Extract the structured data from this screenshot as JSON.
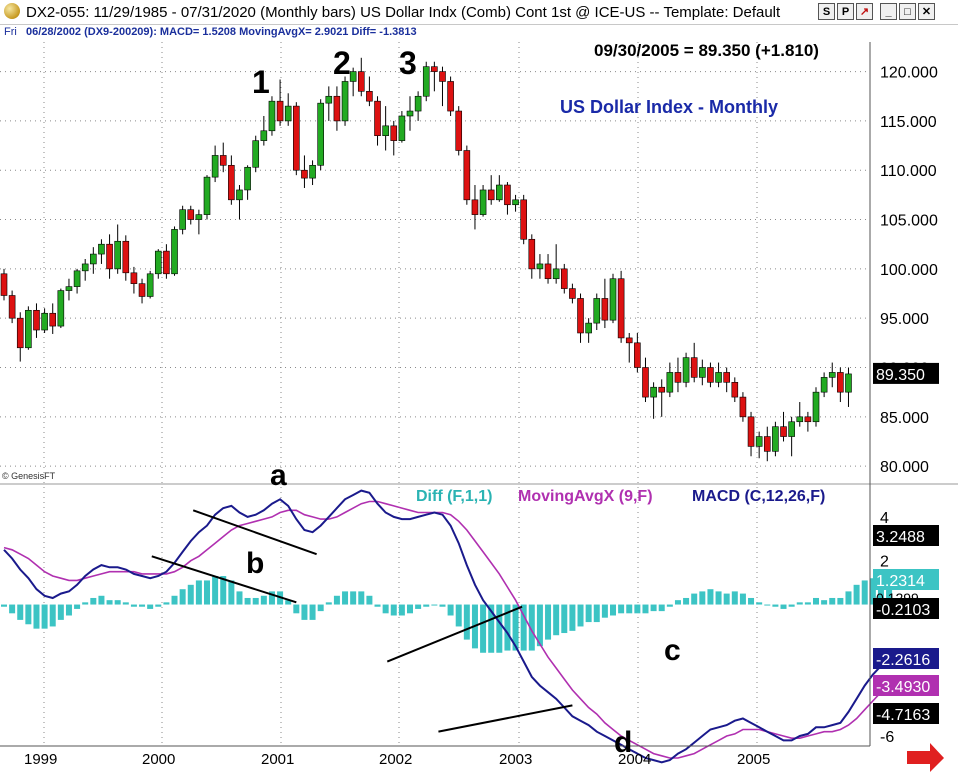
{
  "window": {
    "title": "DX2-055:  11/29/1985 - 07/31/2020  (Monthly bars)   US Dollar Indx (Comb) Cont 1st @ ICE-US   --  Template: Default",
    "buttons": [
      "S",
      "P",
      "↗",
      "_",
      "□",
      "✕"
    ]
  },
  "infobar": {
    "day": "Fri",
    "text": "06/28/2002 (DX9-200209):  MACD= 1.5208  MovingAvgX= 2.9021  Diff= -1.3813"
  },
  "chart_data": {
    "type": "candlestick",
    "title": "US Dollar Index - Monthly",
    "header": "09/30/2005 = 89.350 (+1.810)",
    "copyright": "© GenesisFT",
    "x_labels": [
      "1999",
      "2000",
      "2001",
      "2002",
      "2003",
      "2004",
      "2005"
    ],
    "price_ticks": [
      "120.000",
      "115.000",
      "110.000",
      "105.000",
      "100.000",
      "95.000",
      "90.000",
      "85.000",
      "80.000"
    ],
    "price_ylim": [
      79,
      123
    ],
    "last_price_label": "89.350",
    "wave_labels": [
      "1",
      "2",
      "3"
    ],
    "candles": [
      {
        "o": 99.5,
        "h": 100.0,
        "l": 96.8,
        "c": 97.3
      },
      {
        "o": 97.3,
        "h": 97.8,
        "l": 94.5,
        "c": 95.0
      },
      {
        "o": 95.0,
        "h": 95.6,
        "l": 90.6,
        "c": 92.0
      },
      {
        "o": 92.0,
        "h": 96.2,
        "l": 91.8,
        "c": 95.8
      },
      {
        "o": 95.8,
        "h": 96.5,
        "l": 93.0,
        "c": 93.8
      },
      {
        "o": 93.8,
        "h": 96.0,
        "l": 93.5,
        "c": 95.5
      },
      {
        "o": 95.5,
        "h": 96.5,
        "l": 93.4,
        "c": 94.2
      },
      {
        "o": 94.2,
        "h": 98.0,
        "l": 94.0,
        "c": 97.8
      },
      {
        "o": 97.8,
        "h": 99.0,
        "l": 96.8,
        "c": 98.2
      },
      {
        "o": 98.2,
        "h": 100.0,
        "l": 97.5,
        "c": 99.8
      },
      {
        "o": 99.8,
        "h": 101.0,
        "l": 98.8,
        "c": 100.5
      },
      {
        "o": 100.5,
        "h": 102.2,
        "l": 99.5,
        "c": 101.5
      },
      {
        "o": 101.5,
        "h": 103.0,
        "l": 100.5,
        "c": 102.5
      },
      {
        "o": 102.5,
        "h": 103.5,
        "l": 99.0,
        "c": 100.0
      },
      {
        "o": 100.0,
        "h": 104.5,
        "l": 99.5,
        "c": 102.8
      },
      {
        "o": 102.8,
        "h": 103.4,
        "l": 98.8,
        "c": 99.6
      },
      {
        "o": 99.6,
        "h": 100.2,
        "l": 97.5,
        "c": 98.5
      },
      {
        "o": 98.5,
        "h": 99.0,
        "l": 96.5,
        "c": 97.2
      },
      {
        "o": 97.2,
        "h": 99.8,
        "l": 97.0,
        "c": 99.5
      },
      {
        "o": 99.5,
        "h": 102.0,
        "l": 99.0,
        "c": 101.8
      },
      {
        "o": 101.8,
        "h": 102.5,
        "l": 99.0,
        "c": 99.5
      },
      {
        "o": 99.5,
        "h": 104.3,
        "l": 99.3,
        "c": 104.0
      },
      {
        "o": 104.0,
        "h": 106.4,
        "l": 103.5,
        "c": 106.0
      },
      {
        "o": 106.0,
        "h": 106.4,
        "l": 104.5,
        "c": 105.0
      },
      {
        "o": 105.0,
        "h": 106.0,
        "l": 103.5,
        "c": 105.5
      },
      {
        "o": 105.5,
        "h": 109.5,
        "l": 105.0,
        "c": 109.3
      },
      {
        "o": 109.3,
        "h": 112.5,
        "l": 108.8,
        "c": 111.5
      },
      {
        "o": 111.5,
        "h": 112.8,
        "l": 109.8,
        "c": 110.5
      },
      {
        "o": 110.5,
        "h": 111.5,
        "l": 106.5,
        "c": 107.0
      },
      {
        "o": 107.0,
        "h": 108.5,
        "l": 105.0,
        "c": 108.0
      },
      {
        "o": 108.0,
        "h": 110.5,
        "l": 107.0,
        "c": 110.3
      },
      {
        "o": 110.3,
        "h": 113.5,
        "l": 109.8,
        "c": 113.0
      },
      {
        "o": 113.0,
        "h": 115.5,
        "l": 112.5,
        "c": 114.0
      },
      {
        "o": 114.0,
        "h": 117.5,
        "l": 113.5,
        "c": 117.0
      },
      {
        "o": 117.0,
        "h": 119.2,
        "l": 114.5,
        "c": 115.0
      },
      {
        "o": 115.0,
        "h": 117.8,
        "l": 114.5,
        "c": 116.5
      },
      {
        "o": 116.5,
        "h": 116.9,
        "l": 109.5,
        "c": 110.0
      },
      {
        "o": 110.0,
        "h": 111.5,
        "l": 108.2,
        "c": 109.2
      },
      {
        "o": 109.2,
        "h": 111.0,
        "l": 108.5,
        "c": 110.5
      },
      {
        "o": 110.5,
        "h": 117.2,
        "l": 110.0,
        "c": 116.8
      },
      {
        "o": 116.8,
        "h": 118.5,
        "l": 115.0,
        "c": 117.5
      },
      {
        "o": 117.5,
        "h": 118.5,
        "l": 114.0,
        "c": 115.0
      },
      {
        "o": 115.0,
        "h": 119.5,
        "l": 114.5,
        "c": 119.0
      },
      {
        "o": 119.0,
        "h": 120.4,
        "l": 117.5,
        "c": 120.0
      },
      {
        "o": 120.0,
        "h": 121.4,
        "l": 117.5,
        "c": 118.0
      },
      {
        "o": 118.0,
        "h": 119.5,
        "l": 116.5,
        "c": 117.0
      },
      {
        "o": 117.0,
        "h": 117.5,
        "l": 112.5,
        "c": 113.5
      },
      {
        "o": 113.5,
        "h": 116.5,
        "l": 112.0,
        "c": 114.5
      },
      {
        "o": 114.5,
        "h": 115.0,
        "l": 111.5,
        "c": 113.0
      },
      {
        "o": 113.0,
        "h": 116.0,
        "l": 112.8,
        "c": 115.5
      },
      {
        "o": 115.5,
        "h": 117.5,
        "l": 114.0,
        "c": 116.0
      },
      {
        "o": 116.0,
        "h": 118.0,
        "l": 115.0,
        "c": 117.5
      },
      {
        "o": 117.5,
        "h": 121.0,
        "l": 117.0,
        "c": 120.5
      },
      {
        "o": 120.5,
        "h": 121.0,
        "l": 118.0,
        "c": 120.0
      },
      {
        "o": 120.0,
        "h": 120.5,
        "l": 116.5,
        "c": 119.0
      },
      {
        "o": 119.0,
        "h": 119.5,
        "l": 115.5,
        "c": 116.0
      },
      {
        "o": 116.0,
        "h": 116.5,
        "l": 111.5,
        "c": 112.0
      },
      {
        "o": 112.0,
        "h": 112.5,
        "l": 106.5,
        "c": 107.0
      },
      {
        "o": 107.0,
        "h": 108.5,
        "l": 104.0,
        "c": 105.5
      },
      {
        "o": 105.5,
        "h": 108.5,
        "l": 105.3,
        "c": 108.0
      },
      {
        "o": 108.0,
        "h": 109.5,
        "l": 106.5,
        "c": 107.0
      },
      {
        "o": 107.0,
        "h": 109.5,
        "l": 106.8,
        "c": 108.5
      },
      {
        "o": 108.5,
        "h": 108.8,
        "l": 105.5,
        "c": 106.5
      },
      {
        "o": 106.5,
        "h": 107.5,
        "l": 105.8,
        "c": 107.0
      },
      {
        "o": 107.0,
        "h": 107.5,
        "l": 102.5,
        "c": 103.0
      },
      {
        "o": 103.0,
        "h": 103.5,
        "l": 99.0,
        "c": 100.0
      },
      {
        "o": 100.0,
        "h": 101.5,
        "l": 99.0,
        "c": 100.5
      },
      {
        "o": 100.5,
        "h": 101.5,
        "l": 98.5,
        "c": 99.0
      },
      {
        "o": 99.0,
        "h": 102.5,
        "l": 98.5,
        "c": 100.0
      },
      {
        "o": 100.0,
        "h": 100.5,
        "l": 97.5,
        "c": 98.0
      },
      {
        "o": 98.0,
        "h": 98.5,
        "l": 96.5,
        "c": 97.0
      },
      {
        "o": 97.0,
        "h": 97.5,
        "l": 92.5,
        "c": 93.5
      },
      {
        "o": 93.5,
        "h": 95.0,
        "l": 92.5,
        "c": 94.5
      },
      {
        "o": 94.5,
        "h": 97.5,
        "l": 93.8,
        "c": 97.0
      },
      {
        "o": 97.0,
        "h": 99.0,
        "l": 94.0,
        "c": 94.8
      },
      {
        "o": 94.8,
        "h": 99.5,
        "l": 94.5,
        "c": 99.0
      },
      {
        "o": 99.0,
        "h": 99.8,
        "l": 92.5,
        "c": 93.0
      },
      {
        "o": 93.0,
        "h": 93.5,
        "l": 90.5,
        "c": 92.5
      },
      {
        "o": 92.5,
        "h": 93.5,
        "l": 89.5,
        "c": 90.0
      },
      {
        "o": 90.0,
        "h": 91.0,
        "l": 86.5,
        "c": 87.0
      },
      {
        "o": 87.0,
        "h": 88.5,
        "l": 84.8,
        "c": 88.0
      },
      {
        "o": 88.0,
        "h": 88.8,
        "l": 85.0,
        "c": 87.5
      },
      {
        "o": 87.5,
        "h": 90.5,
        "l": 87.0,
        "c": 89.5
      },
      {
        "o": 89.5,
        "h": 91.0,
        "l": 87.5,
        "c": 88.5
      },
      {
        "o": 88.5,
        "h": 91.5,
        "l": 88.0,
        "c": 91.0
      },
      {
        "o": 91.0,
        "h": 92.5,
        "l": 88.5,
        "c": 89.0
      },
      {
        "o": 89.0,
        "h": 90.8,
        "l": 88.2,
        "c": 90.0
      },
      {
        "o": 90.0,
        "h": 90.5,
        "l": 88.0,
        "c": 88.5
      },
      {
        "o": 88.5,
        "h": 90.5,
        "l": 88.0,
        "c": 89.5
      },
      {
        "o": 89.5,
        "h": 90.0,
        "l": 87.5,
        "c": 88.5
      },
      {
        "o": 88.5,
        "h": 89.0,
        "l": 86.5,
        "c": 87.0
      },
      {
        "o": 87.0,
        "h": 87.5,
        "l": 84.5,
        "c": 85.0
      },
      {
        "o": 85.0,
        "h": 85.5,
        "l": 81.0,
        "c": 82.0
      },
      {
        "o": 82.0,
        "h": 83.5,
        "l": 80.8,
        "c": 83.0
      },
      {
        "o": 83.0,
        "h": 84.0,
        "l": 80.5,
        "c": 81.5
      },
      {
        "o": 81.5,
        "h": 84.5,
        "l": 81.0,
        "c": 84.0
      },
      {
        "o": 84.0,
        "h": 85.5,
        "l": 82.5,
        "c": 83.0
      },
      {
        "o": 83.0,
        "h": 85.0,
        "l": 81.0,
        "c": 84.5
      },
      {
        "o": 84.5,
        "h": 86.5,
        "l": 84.0,
        "c": 85.0
      },
      {
        "o": 85.0,
        "h": 85.5,
        "l": 83.5,
        "c": 84.5
      },
      {
        "o": 84.5,
        "h": 88.0,
        "l": 84.0,
        "c": 87.5
      },
      {
        "o": 87.5,
        "h": 89.5,
        "l": 87.0,
        "c": 89.0
      },
      {
        "o": 89.0,
        "h": 90.5,
        "l": 88.0,
        "c": 89.5
      },
      {
        "o": 89.5,
        "h": 90.0,
        "l": 86.5,
        "c": 87.5
      },
      {
        "o": 87.5,
        "h": 90.0,
        "l": 86.0,
        "c": 89.35
      }
    ],
    "macd_ylim": [
      -6.5,
      5.5
    ],
    "macd_ticks": [
      "4",
      "2",
      "-6"
    ],
    "macd_title": {
      "diff": "Diff (F,1,1)",
      "mavg": "MovingAvgX (9,F)",
      "macd": "MACD (C,12,26,F)"
    },
    "macd_value_labels": [
      "3.2488",
      "1.2314",
      "-0.2103",
      "-2.2616",
      "-3.4930",
      "-4.7163"
    ],
    "macd_partial_label": "0.1299",
    "trend_labels": [
      "a",
      "b",
      "c",
      "d"
    ],
    "macd": [
      2.5,
      2.1,
      1.6,
      1.2,
      0.7,
      0.4,
      0.3,
      0.5,
      0.6,
      0.9,
      1.3,
      1.6,
      1.8,
      1.7,
      1.7,
      1.6,
      1.4,
      1.3,
      1.2,
      1.3,
      1.5,
      1.9,
      2.4,
      2.9,
      3.3,
      3.6,
      4.1,
      4.4,
      4.5,
      4.2,
      4.0,
      4.1,
      4.3,
      4.6,
      4.8,
      4.5,
      3.9,
      3.4,
      3.3,
      3.6,
      4.0,
      4.4,
      4.8,
      5.0,
      5.2,
      5.1,
      4.6,
      4.2,
      4.0,
      3.9,
      3.9,
      4.0,
      4.1,
      4.2,
      4.1,
      3.6,
      2.8,
      1.8,
      0.9,
      0.2,
      -0.3,
      -0.8,
      -1.3,
      -1.9,
      -2.6,
      -3.3,
      -3.7,
      -4.0,
      -4.3,
      -4.7,
      -5.1,
      -5.3,
      -5.5,
      -5.8,
      -6.0,
      -6.2,
      -6.4,
      -6.6,
      -6.8,
      -7.0,
      -7.1,
      -7.2,
      -7.1,
      -6.8,
      -6.6,
      -6.3,
      -6.0,
      -5.7,
      -5.6,
      -5.5,
      -5.3,
      -5.2,
      -5.4,
      -5.6,
      -5.8,
      -6.0,
      -6.2,
      -6.2,
      -6.0,
      -5.9,
      -5.6,
      -5.6,
      -5.5,
      -5.4,
      -4.9,
      -4.3,
      -3.7,
      -3.2,
      -2.8,
      -2.3
    ],
    "signal": [
      2.6,
      2.5,
      2.3,
      2.1,
      1.8,
      1.5,
      1.3,
      1.2,
      1.1,
      1.1,
      1.2,
      1.3,
      1.4,
      1.5,
      1.5,
      1.5,
      1.5,
      1.4,
      1.4,
      1.4,
      1.4,
      1.5,
      1.7,
      2.0,
      2.2,
      2.5,
      2.8,
      3.1,
      3.4,
      3.6,
      3.7,
      3.8,
      3.9,
      4.0,
      4.2,
      4.3,
      4.3,
      4.1,
      4.0,
      3.9,
      3.9,
      4.0,
      4.2,
      4.4,
      4.6,
      4.7,
      4.7,
      4.6,
      4.5,
      4.4,
      4.3,
      4.2,
      4.2,
      4.2,
      4.2,
      4.1,
      3.8,
      3.4,
      2.9,
      2.4,
      1.9,
      1.4,
      0.8,
      0.2,
      -0.5,
      -1.2,
      -1.8,
      -2.4,
      -2.9,
      -3.4,
      -3.9,
      -4.3,
      -4.7,
      -5.0,
      -5.4,
      -5.7,
      -6.0,
      -6.2,
      -6.4,
      -6.6,
      -6.8,
      -6.9,
      -7.0,
      -7.0,
      -6.9,
      -6.8,
      -6.6,
      -6.4,
      -6.2,
      -6.0,
      -5.9,
      -5.7,
      -5.7,
      -5.7,
      -5.8,
      -5.9,
      -6.0,
      -6.1,
      -6.1,
      -6.0,
      -5.9,
      -5.8,
      -5.8,
      -5.7,
      -5.5,
      -5.2,
      -4.8,
      -4.4,
      -4.0,
      -3.6
    ],
    "trendlines": [
      {
        "label": "a",
        "x1": 23.3,
        "y1": 4.3,
        "x2": 38.5,
        "y2": 2.3
      },
      {
        "label": "b",
        "x1": 18.2,
        "y1": 2.2,
        "x2": 36.0,
        "y2": 0.1
      },
      {
        "label": "c",
        "x1": 47.2,
        "y1": -2.6,
        "x2": 63.8,
        "y2": -0.1
      },
      {
        "label": "d",
        "x1": 53.5,
        "y1": -5.8,
        "x2": 70.0,
        "y2": -4.6
      }
    ]
  }
}
